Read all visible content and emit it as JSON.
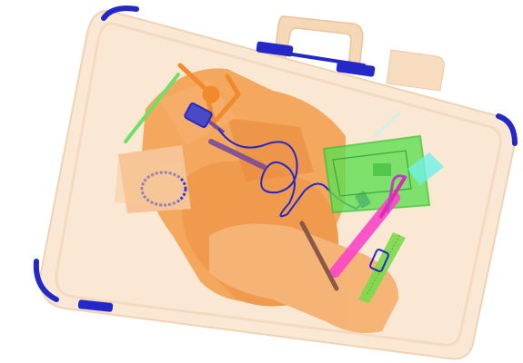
{
  "scene": {
    "kind": "x-ray scan of a suitcase",
    "colors": {
      "background": "#ffffff",
      "case_fill": "#fae8d5",
      "case_edge": "#f2d6b9",
      "organic": "#f08a2c",
      "organic_dark": "#e0731a",
      "metal": "#2428c8",
      "inorganic_green": "#5fe052",
      "pink": "#ff44c8",
      "purple": "#7a4c9a",
      "cyan": "#6ff0e6"
    },
    "objects": [
      {
        "name": "suitcase-body",
        "material": "organic"
      },
      {
        "name": "handle",
        "material": "organic"
      },
      {
        "name": "corner-clips",
        "material": "metal"
      },
      {
        "name": "clothing-pile",
        "material": "organic"
      },
      {
        "name": "bead-bracelet",
        "material": "metal"
      },
      {
        "name": "charger-cable",
        "material": "metal"
      },
      {
        "name": "pliers-tool",
        "material": "organic"
      },
      {
        "name": "circuit-board",
        "material": "inorganic"
      },
      {
        "name": "comb",
        "material": "inorganic"
      },
      {
        "name": "toothbrush",
        "material": "pink"
      },
      {
        "name": "pen",
        "material": "organic"
      }
    ]
  }
}
